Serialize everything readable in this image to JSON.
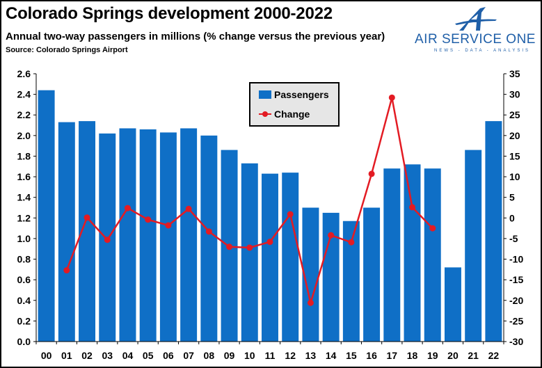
{
  "header": {
    "title": "Colorado Springs development 2000-2022",
    "subtitle": "Annual two-way passengers in millions (% change versus the previous year)",
    "source": "Source: Colorado Springs Airport"
  },
  "logo": {
    "name": "AIR SERVICE ONE",
    "tagline": "NEWS - DATA - ANALYSIS",
    "icon": "stylized-a-plane-icon",
    "color": "#1f5fa8"
  },
  "chart_data": {
    "type": "bar",
    "categories": [
      "00",
      "01",
      "02",
      "03",
      "04",
      "05",
      "06",
      "07",
      "08",
      "09",
      "10",
      "11",
      "12",
      "13",
      "14",
      "15",
      "16",
      "17",
      "18",
      "19",
      "20",
      "21",
      "22"
    ],
    "series": [
      {
        "name": "Passengers",
        "type": "bar",
        "axis": "left",
        "color": "#0f6fc6",
        "values": [
          2.44,
          2.13,
          2.14,
          2.02,
          2.07,
          2.06,
          2.03,
          2.07,
          2.0,
          1.86,
          1.73,
          1.63,
          1.64,
          1.3,
          1.25,
          1.17,
          1.3,
          1.68,
          1.72,
          1.68,
          0.72,
          1.86,
          2.14
        ]
      },
      {
        "name": "Change",
        "type": "line",
        "axis": "right",
        "color": "#e31b23",
        "values": [
          null,
          -12.7,
          0.1,
          -5.3,
          2.4,
          -0.4,
          -1.8,
          2.2,
          -3.3,
          -7.0,
          -7.2,
          -5.8,
          0.9,
          -20.6,
          -4.2,
          -5.9,
          10.7,
          29.2,
          2.6,
          -2.5,
          null,
          null,
          null
        ]
      }
    ],
    "y_left": {
      "min": 0,
      "max": 2.6,
      "step": 0.2,
      "ticks": [
        "0.0",
        "0.2",
        "0.4",
        "0.6",
        "0.8",
        "1.0",
        "1.2",
        "1.4",
        "1.6",
        "1.8",
        "2.0",
        "2.2",
        "2.4",
        "2.6"
      ]
    },
    "y_right": {
      "min": -30,
      "max": 35,
      "step": 5,
      "ticks": [
        "-30",
        "-25",
        "-20",
        "-15",
        "-10",
        "-5",
        "0",
        "5",
        "10",
        "15",
        "20",
        "25",
        "30",
        "35"
      ]
    },
    "legend": {
      "position": "top-center",
      "entries": [
        "Passengers",
        "Change"
      ]
    },
    "grid": false
  }
}
